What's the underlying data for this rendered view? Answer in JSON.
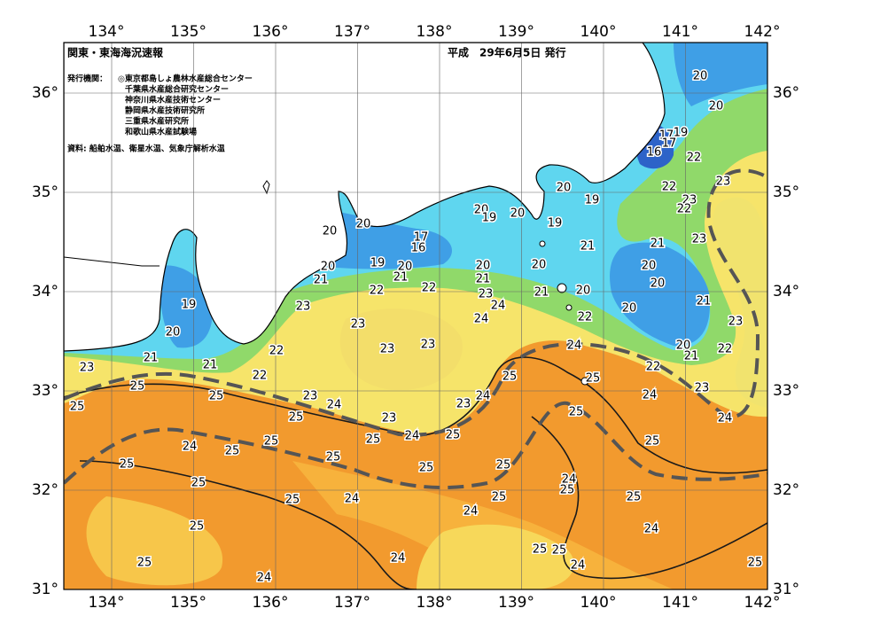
{
  "header": {
    "title": "関東・東海海況速報",
    "date": "平成　29年6月5日 発行",
    "publisher_label": "発行機関：",
    "publishers": [
      "◎東京都島しょ農林水産総合センター",
      "千葉県水産総合研究センター",
      "神奈川県水産技術センター",
      "静岡県水産技術研究所",
      "三重県水産研究所",
      "和歌山県水産試験場"
    ],
    "source": "資料: 船舶水温、衛星水温、気象庁解析水温"
  },
  "map": {
    "lon_labels": [
      "134°",
      "135°",
      "136°",
      "137°",
      "138°",
      "139°",
      "140°",
      "141°",
      "142°"
    ],
    "lat_labels": [
      "36°",
      "35°",
      "34°",
      "33°",
      "32°",
      "31°"
    ],
    "contour_labels": [
      20,
      20,
      17,
      19,
      17,
      16,
      22,
      20,
      19,
      22,
      23,
      22,
      23,
      20,
      19,
      20,
      19,
      20,
      20,
      17,
      16,
      23,
      21,
      21,
      20,
      20,
      19,
      20,
      20,
      20,
      20,
      21,
      21,
      22,
      22,
      21,
      23,
      21,
      20,
      19,
      23,
      24,
      24,
      22,
      20,
      21,
      23,
      23,
      20,
      23,
      23,
      24,
      22,
      21,
      21,
      20,
      21,
      22,
      22,
      23,
      22,
      25,
      25,
      25,
      23,
      24,
      24,
      25,
      23,
      25,
      24,
      23,
      25,
      25,
      23,
      24,
      24,
      25,
      25,
      25,
      25,
      24,
      25,
      25,
      25,
      25,
      25,
      24,
      25,
      25,
      25,
      24,
      25,
      25,
      24,
      25,
      24,
      25,
      25,
      24,
      25,
      24,
      25,
      24
    ]
  }
}
